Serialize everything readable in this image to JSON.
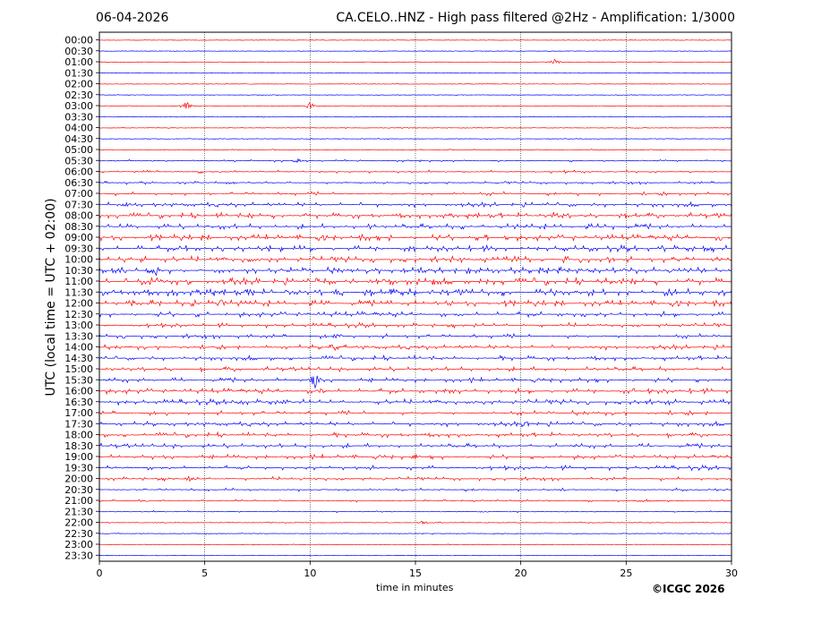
{
  "header": {
    "date": "06-04-2026",
    "title": "CA.CELO..HNZ - High pass filtered @2Hz - Amplification: 1/3000"
  },
  "footer": {
    "copyright": "©ICGC 2026"
  },
  "colors": {
    "red": "#ff0000",
    "blue": "#0000ff",
    "grid": "#000000"
  },
  "chart_data": {
    "type": "line",
    "subtype": "helicorder",
    "xlabel": "time in minutes",
    "ylabel": "UTC (local time = UTC + 02:00)",
    "xlim": [
      0,
      30
    ],
    "x_ticks": [
      0,
      5,
      10,
      15,
      20,
      25,
      30
    ],
    "grid_vertical": "dotted",
    "rows": [
      "00:00",
      "00:30",
      "01:00",
      "01:30",
      "02:00",
      "02:30",
      "03:00",
      "03:30",
      "04:00",
      "04:30",
      "05:00",
      "05:30",
      "06:00",
      "06:30",
      "07:00",
      "07:30",
      "08:00",
      "08:30",
      "09:00",
      "09:30",
      "10:00",
      "10:30",
      "11:00",
      "11:30",
      "12:00",
      "12:30",
      "13:00",
      "13:30",
      "14:00",
      "14:30",
      "15:00",
      "15:30",
      "16:00",
      "16:30",
      "17:00",
      "17:30",
      "18:00",
      "18:30",
      "19:00",
      "19:30",
      "20:00",
      "20:30",
      "21:00",
      "21:30",
      "22:00",
      "22:30",
      "23:00",
      "23:30"
    ],
    "row_colors": "alternating red / blue",
    "activity_level": [
      0.3,
      0.4,
      0.4,
      0.3,
      0.3,
      0.3,
      0.6,
      0.6,
      0.6,
      0.6,
      1,
      1.5,
      2,
      2,
      2.5,
      3,
      3.5,
      3.5,
      4,
      4,
      4,
      4,
      4.5,
      4.5,
      4,
      3.5,
      3,
      3,
      3,
      3,
      3,
      3,
      3.5,
      3.5,
      3,
      3,
      3,
      3,
      3,
      3,
      2.5,
      2,
      1.5,
      1,
      1,
      0.8,
      0.5,
      0.3
    ],
    "events": [
      {
        "row": "01:00",
        "minute": 21.6,
        "amp": 1.5
      },
      {
        "row": "03:00",
        "minute": 4.1,
        "amp": 2.2
      },
      {
        "row": "03:00",
        "minute": 10.0,
        "amp": 2.0
      },
      {
        "row": "05:30",
        "minute": 9.4,
        "amp": 1.2
      },
      {
        "row": "07:30",
        "minute": 1.3,
        "amp": 1.3
      },
      {
        "row": "08:00",
        "minute": 21.6,
        "amp": 1.5
      },
      {
        "row": "10:30",
        "minute": 2.5,
        "amp": 2.2
      },
      {
        "row": "10:30",
        "minute": 25.0,
        "amp": 1.3
      },
      {
        "row": "11:30",
        "minute": 11.3,
        "amp": 1.6
      },
      {
        "row": "12:00",
        "minute": 5.8,
        "amp": 2.5
      },
      {
        "row": "13:30",
        "minute": 11.3,
        "amp": 1.5
      },
      {
        "row": "14:00",
        "minute": 11.2,
        "amp": 1.7
      },
      {
        "row": "15:30",
        "minute": 10.2,
        "amp": 3.2
      },
      {
        "row": "16:00",
        "minute": 10.5,
        "amp": 1.5
      },
      {
        "row": "16:00",
        "minute": 16.5,
        "amp": 1.4
      },
      {
        "row": "16:30",
        "minute": 6.5,
        "amp": 1.8
      },
      {
        "row": "16:30",
        "minute": 8.8,
        "amp": 1.5
      },
      {
        "row": "17:30",
        "minute": 20.3,
        "amp": 1.5
      },
      {
        "row": "19:00",
        "minute": 15.0,
        "amp": 1.5
      },
      {
        "row": "20:00",
        "minute": 4.3,
        "amp": 1.4
      },
      {
        "row": "22:00",
        "minute": 15.4,
        "amp": 1.3
      }
    ]
  }
}
